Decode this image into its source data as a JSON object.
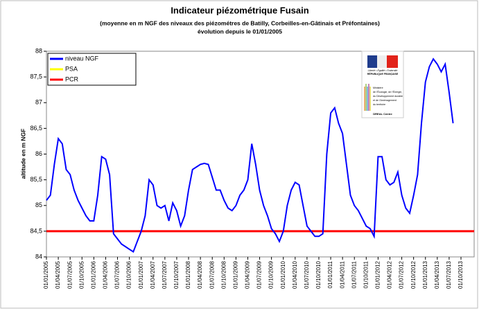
{
  "chart_data": {
    "type": "line",
    "title": "Indicateur piézométrique Fusain",
    "subtitle": [
      "(moyenne en m NGF des niveaux des piézométres de Batilly, Corbeilles-en-Gâtinais et Préfontaines)",
      "évolution depuis le 01/01/2005"
    ],
    "ylabel": "altitude en m NGF",
    "ylim": [
      84,
      88
    ],
    "yticks": [
      84,
      {
        "value": 84.5,
        "label": "84,5"
      },
      85,
      {
        "value": 85.5,
        "label": "85,5"
      },
      86,
      {
        "value": 86.5,
        "label": "86,5"
      },
      87,
      {
        "value": 87.5,
        "label": "87,5"
      },
      88
    ],
    "xlim": [
      "01/01/2005",
      "01/10/2013"
    ],
    "xticks": [
      "01/01/2005",
      "01/04/2005",
      "01/07/2005",
      "01/10/2005",
      "01/01/2006",
      "01/04/2006",
      "01/07/2006",
      "01/10/2006",
      "01/01/2007",
      "01/04/2007",
      "01/07/2007",
      "01/10/2007",
      "01/01/2008",
      "01/04/2008",
      "01/07/2008",
      "01/10/2008",
      "01/01/2009",
      "01/04/2009",
      "01/07/2009",
      "01/10/2009",
      "01/01/2010",
      "01/04/2010",
      "01/07/2010",
      "01/10/2010",
      "01/01/2011",
      "01/04/2011",
      "01/07/2011",
      "01/10/2011",
      "01/01/2012",
      "01/04/2012",
      "01/07/2012",
      "01/10/2012",
      "01/01/2013",
      "01/04/2013",
      "01/07/2013",
      "01/10/2013"
    ],
    "series": [
      {
        "name": "niveau NGF",
        "color": "#0000ff",
        "x": [
          "01/01/2005",
          "01/02/2005",
          "01/03/2005",
          "01/04/2005",
          "01/05/2005",
          "01/06/2005",
          "01/07/2005",
          "01/08/2005",
          "01/09/2005",
          "01/10/2005",
          "01/11/2005",
          "01/12/2005",
          "01/01/2006",
          "01/02/2006",
          "01/03/2006",
          "01/04/2006",
          "01/05/2006",
          "01/06/2006",
          "01/07/2006",
          "01/08/2006",
          "01/09/2006",
          "01/10/2006",
          "01/11/2006",
          "01/12/2006",
          "01/01/2007",
          "01/02/2007",
          "01/03/2007",
          "01/04/2007",
          "01/05/2007",
          "01/06/2007",
          "01/07/2007",
          "01/08/2007",
          "01/09/2007",
          "01/10/2007",
          "01/11/2007",
          "01/12/2007",
          "01/01/2008",
          "01/02/2008",
          "01/03/2008",
          "01/04/2008",
          "01/05/2008",
          "01/06/2008",
          "01/07/2008",
          "01/08/2008",
          "01/09/2008",
          "01/10/2008",
          "01/11/2008",
          "01/12/2008",
          "01/01/2009",
          "01/02/2009",
          "01/03/2009",
          "01/04/2009",
          "01/05/2009",
          "01/06/2009",
          "01/07/2009",
          "01/08/2009",
          "01/09/2009",
          "01/10/2009",
          "01/11/2009",
          "01/12/2009",
          "01/01/2010",
          "01/02/2010",
          "01/03/2010",
          "01/04/2010",
          "01/05/2010",
          "01/06/2010",
          "01/07/2010",
          "01/08/2010",
          "01/09/2010",
          "01/10/2010",
          "01/11/2010",
          "01/12/2010",
          "01/01/2011",
          "01/02/2011",
          "01/03/2011",
          "01/04/2011",
          "01/05/2011",
          "01/06/2011",
          "01/07/2011",
          "01/08/2011",
          "01/09/2011",
          "01/10/2011",
          "01/11/2011",
          "01/12/2011",
          "01/01/2012",
          "01/02/2012",
          "01/03/2012",
          "01/04/2012",
          "01/05/2012",
          "01/06/2012",
          "01/07/2012",
          "01/08/2012",
          "01/09/2012",
          "01/10/2012",
          "01/11/2012",
          "01/12/2012",
          "01/01/2013",
          "01/02/2013",
          "01/03/2013",
          "01/04/2013",
          "01/05/2013",
          "01/06/2013",
          "01/07/2013",
          "01/08/2013"
        ],
        "values": [
          85.1,
          85.2,
          85.8,
          86.3,
          86.2,
          85.7,
          85.6,
          85.3,
          85.1,
          84.95,
          84.8,
          84.7,
          84.7,
          85.2,
          85.95,
          85.9,
          85.6,
          84.45,
          84.35,
          84.25,
          84.2,
          84.15,
          84.1,
          84.3,
          84.5,
          84.8,
          85.5,
          85.4,
          85.0,
          84.95,
          85.0,
          84.7,
          85.05,
          84.9,
          84.6,
          84.8,
          85.3,
          85.7,
          85.75,
          85.8,
          85.82,
          85.8,
          85.55,
          85.3,
          85.3,
          85.1,
          84.95,
          84.9,
          85.0,
          85.2,
          85.3,
          85.5,
          86.2,
          85.8,
          85.3,
          85.0,
          84.8,
          84.55,
          84.45,
          84.3,
          84.5,
          85.0,
          85.3,
          85.45,
          85.4,
          85.0,
          84.6,
          84.5,
          84.4,
          84.4,
          84.45,
          86.0,
          86.8,
          86.9,
          86.6,
          86.4,
          85.8,
          85.2,
          85.0,
          84.9,
          84.75,
          84.6,
          84.55,
          84.4,
          85.95,
          85.95,
          85.5,
          85.4,
          85.45,
          85.65,
          85.2,
          84.95,
          84.85,
          85.2,
          85.6,
          86.6,
          87.4,
          87.7,
          87.85,
          87.75,
          87.6,
          87.75,
          87.2,
          86.6
        ]
      }
    ],
    "thresholds": [
      {
        "name": "PSA",
        "color": "#ffff00"
      },
      {
        "name": "PCR",
        "color": "#ff0000",
        "value": 84.5
      }
    ],
    "legend": "upper left",
    "logo": {
      "motto": "Liberté • Égalité • Fraternité",
      "republic": "RÉPUBLIQUE FRANÇAISE",
      "ministry": [
        "Ministère",
        "de l'Écologie, de l'Énergie,",
        "du Développement durable",
        "et de l'Aménagement",
        "du territoire"
      ],
      "office": "DREAL Centre"
    }
  }
}
